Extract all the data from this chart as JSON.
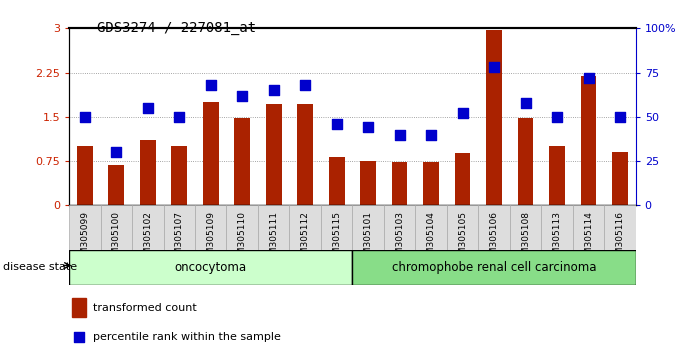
{
  "title": "GDS3274 / 227081_at",
  "samples": [
    "GSM305099",
    "GSM305100",
    "GSM305102",
    "GSM305107",
    "GSM305109",
    "GSM305110",
    "GSM305111",
    "GSM305112",
    "GSM305115",
    "GSM305101",
    "GSM305103",
    "GSM305104",
    "GSM305105",
    "GSM305106",
    "GSM305108",
    "GSM305113",
    "GSM305114",
    "GSM305116"
  ],
  "transformed_count": [
    1.0,
    0.68,
    1.1,
    1.0,
    1.75,
    1.48,
    1.72,
    1.72,
    0.82,
    0.75,
    0.73,
    0.73,
    0.88,
    2.97,
    1.48,
    1.0,
    2.2,
    0.9
  ],
  "percentile_rank": [
    50,
    30,
    55,
    50,
    68,
    62,
    65,
    68,
    46,
    44,
    40,
    40,
    52,
    78,
    58,
    50,
    72,
    50
  ],
  "bar_color": "#aa2200",
  "dot_color": "#0000cc",
  "ylim_left": [
    0,
    3
  ],
  "ylim_right": [
    0,
    100
  ],
  "yticks_left": [
    0,
    0.75,
    1.5,
    2.25,
    3
  ],
  "yticks_right": [
    0,
    25,
    50,
    75,
    100
  ],
  "ytick_labels_left": [
    "0",
    "0.75",
    "1.5",
    "2.25",
    "3"
  ],
  "ytick_labels_right": [
    "0",
    "25",
    "50",
    "75",
    "100%"
  ],
  "group1_label": "oncocytoma",
  "group2_label": "chromophobe renal cell carcinoma",
  "group1_count": 9,
  "group2_count": 9,
  "group1_color": "#ccffcc",
  "group2_color": "#88dd88",
  "disease_state_label": "disease state",
  "legend_bar_label": "transformed count",
  "legend_dot_label": "percentile rank within the sample",
  "bar_width": 0.5,
  "dot_size": 55,
  "background_color": "#ffffff",
  "plot_bg_color": "#ffffff",
  "grid_color": "#888888",
  "axis_label_color_left": "#cc2200",
  "axis_label_color_right": "#0000cc",
  "xlabel_box_color": "#dddddd",
  "xlabel_box_edge": "#aaaaaa"
}
